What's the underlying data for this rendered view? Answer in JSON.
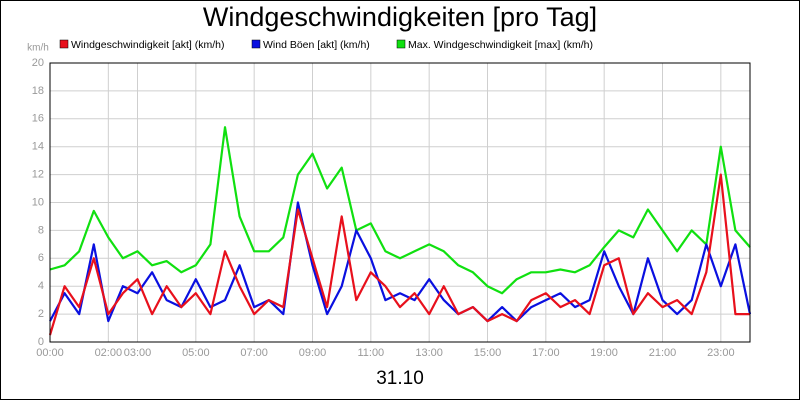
{
  "chart_data": {
    "type": "line",
    "title": "Windgeschwindigkeiten [pro Tag]",
    "y_unit": "km/h",
    "x_title": "31.10",
    "x": [
      0,
      0.5,
      1,
      1.5,
      2,
      2.5,
      3,
      3.5,
      4,
      4.5,
      5,
      5.5,
      6,
      6.5,
      7,
      7.5,
      8,
      8.5,
      9,
      9.5,
      10,
      10.5,
      11,
      11.5,
      12,
      12.5,
      13,
      13.5,
      14,
      14.5,
      15,
      15.5,
      16,
      16.5,
      17,
      17.5,
      18,
      18.5,
      19,
      19.5,
      20,
      20.5,
      21,
      21.5,
      22,
      22.5,
      23,
      23.5,
      24
    ],
    "series": [
      {
        "name": "Windgeschwindigkeit [akt] (km/h)",
        "color": "#e8101c",
        "values": [
          0.5,
          4,
          2.5,
          6,
          2,
          3.5,
          4.5,
          2,
          4,
          2.5,
          3.5,
          2,
          6.5,
          4,
          2,
          3,
          2.5,
          9.5,
          6,
          2.5,
          9,
          3,
          5,
          4,
          2.5,
          3.5,
          2,
          4,
          2,
          2.5,
          1.5,
          2,
          1.5,
          3,
          3.5,
          2.5,
          3,
          2,
          5.5,
          6,
          2,
          3.5,
          2.5,
          3,
          2,
          5,
          12,
          2,
          2
        ]
      },
      {
        "name": "Wind Böen [akt] (km/h)",
        "color": "#0a10e0",
        "values": [
          1.5,
          3.5,
          2,
          7,
          1.5,
          4,
          3.5,
          5,
          3,
          2.5,
          4.5,
          2.5,
          3,
          5.5,
          2.5,
          3,
          2,
          10,
          5.5,
          2,
          4,
          8,
          6,
          3,
          3.5,
          3,
          4.5,
          3,
          2,
          2.5,
          1.5,
          2.5,
          1.5,
          2.5,
          3,
          3.5,
          2.5,
          3,
          6.5,
          4,
          2,
          6,
          3,
          2,
          3,
          7,
          4,
          7,
          2
        ]
      },
      {
        "name": "Max. Windgeschwindigkeit [max] (km/h)",
        "color": "#10e010",
        "values": [
          5.2,
          5.5,
          6.5,
          9.4,
          7.5,
          6,
          6.5,
          5.5,
          5.8,
          5,
          5.5,
          7,
          15.4,
          9,
          6.5,
          6.5,
          7.5,
          12,
          13.5,
          11,
          12.5,
          8,
          8.5,
          6.5,
          6,
          6.5,
          7,
          6.5,
          5.5,
          5,
          4,
          3.5,
          4.5,
          5,
          5,
          5.2,
          5,
          5.5,
          6.8,
          8,
          7.5,
          9.5,
          8,
          6.5,
          8,
          7,
          14,
          8,
          6.8
        ]
      }
    ],
    "xlim": [
      0,
      24
    ],
    "xticks": [
      {
        "value": 0,
        "label": "00:00"
      },
      {
        "value": 2,
        "label": "02:00"
      },
      {
        "value": 3,
        "label": "03:00"
      },
      {
        "value": 5,
        "label": "05:00"
      },
      {
        "value": 7,
        "label": "07:00"
      },
      {
        "value": 9,
        "label": "09:00"
      },
      {
        "value": 11,
        "label": "11:00"
      },
      {
        "value": 13,
        "label": "13:00"
      },
      {
        "value": 15,
        "label": "15:00"
      },
      {
        "value": 17,
        "label": "17:00"
      },
      {
        "value": 19,
        "label": "19:00"
      },
      {
        "value": 21,
        "label": "21:00"
      },
      {
        "value": 23,
        "label": "23:00"
      }
    ],
    "ylim": [
      0,
      20
    ],
    "yticks": [
      0,
      2,
      4,
      6,
      8,
      10,
      12,
      14,
      16,
      18,
      20
    ],
    "grid": true
  }
}
